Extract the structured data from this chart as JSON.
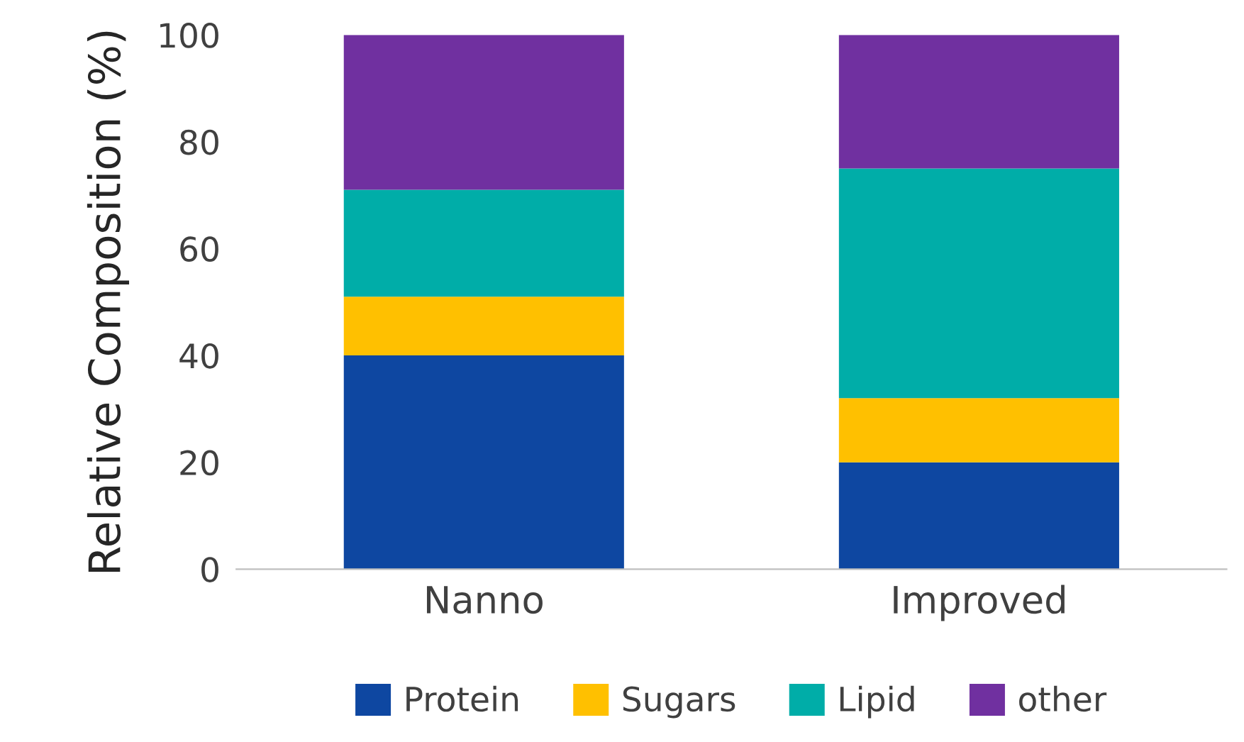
{
  "chart_data": {
    "type": "bar",
    "stacked": true,
    "ylabel": "Relative Composition (%)",
    "categories": [
      "Nanno",
      "Improved"
    ],
    "series": [
      {
        "name": "Protein",
        "color": "#0e47a1",
        "values": [
          40,
          20
        ]
      },
      {
        "name": "Sugars",
        "color": "#ffc000",
        "values": [
          11,
          12
        ]
      },
      {
        "name": "Lipid",
        "color": "#00ada8",
        "values": [
          20,
          43
        ]
      },
      {
        "name": "other",
        "color": "#7030a0",
        "values": [
          29,
          25
        ]
      }
    ],
    "ylim": [
      0,
      100
    ],
    "yticks": [
      0,
      20,
      40,
      60,
      80,
      100
    ],
    "grid": false,
    "legend": "bottom"
  }
}
